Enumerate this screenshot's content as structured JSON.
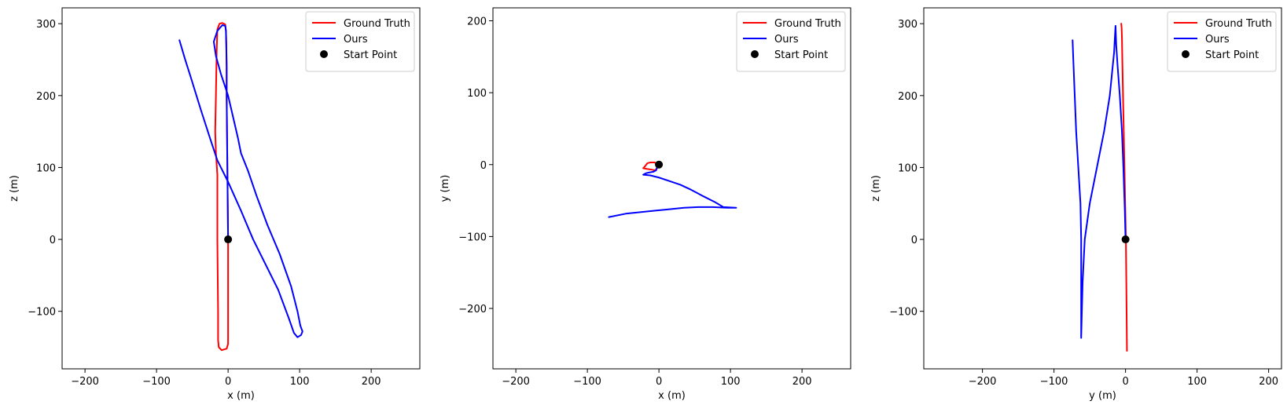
{
  "chart_data": [
    {
      "type": "line",
      "xlabel": "x (m)",
      "ylabel": "z (m)",
      "xlim": [
        -232,
        268
      ],
      "ylim": [
        -180,
        322
      ],
      "xticks": [
        -200,
        -100,
        0,
        100,
        200
      ],
      "yticks": [
        -100,
        0,
        100,
        200,
        300
      ],
      "xtick_labels": [
        "−200",
        "−100",
        "0",
        "100",
        "200"
      ],
      "ytick_labels": [
        "−100",
        "0",
        "100",
        "200",
        "300"
      ],
      "grid": false,
      "legend_position": "top-right",
      "series": [
        {
          "name": "Ground Truth",
          "color": "#ff0000",
          "points": [
            [
              0,
              0
            ],
            [
              -0.5,
              50
            ],
            [
              -1,
              100
            ],
            [
              -1.5,
              150
            ],
            [
              -2,
              200
            ],
            [
              -2,
              240
            ],
            [
              -2.5,
              270
            ],
            [
              -3,
              290
            ],
            [
              -4,
              299
            ],
            [
              -8,
              301
            ],
            [
              -12,
              300
            ],
            [
              -15,
              292
            ],
            [
              -16,
              260
            ],
            [
              -17,
              200
            ],
            [
              -18,
              150
            ],
            [
              -17,
              120
            ],
            [
              -15,
              90
            ],
            [
              -15,
              50
            ],
            [
              -15,
              0
            ],
            [
              -14.5,
              -50
            ],
            [
              -14,
              -100
            ],
            [
              -14,
              -140
            ],
            [
              -13,
              -150
            ],
            [
              -9,
              -154
            ],
            [
              -2,
              -152
            ],
            [
              0,
              -145
            ],
            [
              0,
              -100
            ],
            [
              0,
              -50
            ],
            [
              0,
              0
            ]
          ]
        },
        {
          "name": "Ours",
          "color": "#0000ff",
          "points": [
            [
              0,
              0
            ],
            [
              -0.5,
              50
            ],
            [
              -1,
              100
            ],
            [
              -1.5,
              150
            ],
            [
              -2,
              200
            ],
            [
              -2,
              240
            ],
            [
              -2.5,
              270
            ],
            [
              -3,
              290
            ],
            [
              -4,
              297
            ],
            [
              -8,
              298
            ],
            [
              -15,
              290
            ],
            [
              -20,
              275
            ],
            [
              -17,
              255
            ],
            [
              -10,
              230
            ],
            [
              0,
              200
            ],
            [
              7,
              170
            ],
            [
              14,
              140
            ],
            [
              18,
              120
            ],
            [
              28,
              95
            ],
            [
              40,
              60
            ],
            [
              55,
              20
            ],
            [
              72,
              -20
            ],
            [
              88,
              -65
            ],
            [
              97,
              -100
            ],
            [
              101,
              -120
            ],
            [
              104,
              -128
            ],
            [
              102,
              -133
            ],
            [
              97,
              -136
            ],
            [
              92,
              -130
            ],
            [
              85,
              -110
            ],
            [
              70,
              -70
            ],
            [
              55,
              -40
            ],
            [
              35,
              0
            ],
            [
              18,
              40
            ],
            [
              0,
              80
            ],
            [
              -15,
              110
            ],
            [
              -25,
              140
            ],
            [
              -38,
              180
            ],
            [
              -52,
              225
            ],
            [
              -60,
              250
            ],
            [
              -68,
              277
            ]
          ]
        },
        {
          "name": "Start Point",
          "color": "#000000",
          "marker": "circle",
          "points": [
            [
              0,
              0
            ]
          ]
        }
      ]
    },
    {
      "type": "line",
      "xlabel": "x (m)",
      "ylabel": "y (m)",
      "xlim": [
        -232,
        268
      ],
      "ylim": [
        -284,
        218
      ],
      "xticks": [
        -200,
        -100,
        0,
        100,
        200
      ],
      "yticks": [
        -200,
        -100,
        0,
        100,
        200
      ],
      "xtick_labels": [
        "−200",
        "−100",
        "0",
        "100",
        "200"
      ],
      "ytick_labels": [
        "−200",
        "−100",
        "0",
        "100",
        "200"
      ],
      "grid": false,
      "legend_position": "top-right",
      "series": [
        {
          "name": "Ground Truth",
          "color": "#ff0000",
          "points": [
            [
              0,
              0
            ],
            [
              -3,
              1
            ],
            [
              -6,
              3
            ],
            [
              -12,
              3
            ],
            [
              -16,
              2
            ],
            [
              -20,
              -3
            ],
            [
              -22,
              -5
            ],
            [
              -17,
              -6
            ],
            [
              -10,
              -7
            ],
            [
              -5,
              -8
            ],
            [
              -3,
              -5
            ],
            [
              -2,
              -2
            ],
            [
              -1,
              0
            ]
          ]
        },
        {
          "name": "Ours",
          "color": "#0000ff",
          "points": [
            [
              0,
              0
            ],
            [
              -2,
              -3
            ],
            [
              -4,
              -8
            ],
            [
              -8,
              -10
            ],
            [
              -14,
              -11
            ],
            [
              -18,
              -12
            ],
            [
              -22,
              -14
            ],
            [
              -12,
              -15
            ],
            [
              0,
              -18
            ],
            [
              15,
              -23
            ],
            [
              30,
              -28
            ],
            [
              45,
              -35
            ],
            [
              62,
              -44
            ],
            [
              78,
              -52
            ],
            [
              90,
              -59
            ],
            [
              108,
              -60
            ],
            [
              95,
              -60
            ],
            [
              75,
              -59
            ],
            [
              55,
              -59
            ],
            [
              35,
              -60
            ],
            [
              15,
              -62
            ],
            [
              -5,
              -64
            ],
            [
              -25,
              -66
            ],
            [
              -45,
              -68
            ],
            [
              -70,
              -73
            ]
          ]
        },
        {
          "name": "Start Point",
          "color": "#000000",
          "marker": "circle",
          "points": [
            [
              0,
              0
            ]
          ]
        }
      ]
    },
    {
      "type": "line",
      "xlabel": "y (m)",
      "ylabel": "z (m)",
      "xlim": [
        -282,
        218
      ],
      "ylim": [
        -180,
        322
      ],
      "xticks": [
        -200,
        -100,
        0,
        100,
        200
      ],
      "yticks": [
        -100,
        0,
        100,
        200,
        300
      ],
      "xtick_labels": [
        "−200",
        "−100",
        "0",
        "100",
        "200"
      ],
      "ytick_labels": [
        "−100",
        "0",
        "100",
        "200",
        "300"
      ],
      "grid": false,
      "legend_position": "top-right",
      "series": [
        {
          "name": "Ground Truth",
          "color": "#ff0000",
          "points": [
            [
              2,
              -155
            ],
            [
              1.5,
              -100
            ],
            [
              1,
              -50
            ],
            [
              0.5,
              0
            ],
            [
              -0.5,
              50
            ],
            [
              -1.5,
              100
            ],
            [
              -2.5,
              150
            ],
            [
              -3.5,
              200
            ],
            [
              -4.5,
              250
            ],
            [
              -5,
              280
            ],
            [
              -5.5,
              295
            ],
            [
              -6,
              300
            ]
          ]
        },
        {
          "name": "Ours",
          "color": "#0000ff",
          "points": [
            [
              0,
              0
            ],
            [
              -1,
              40
            ],
            [
              -3,
              100
            ],
            [
              -5,
              150
            ],
            [
              -8,
              200
            ],
            [
              -11,
              240
            ],
            [
              -13,
              270
            ],
            [
              -14,
              297
            ],
            [
              -16,
              260
            ],
            [
              -22,
              200
            ],
            [
              -30,
              150
            ],
            [
              -40,
              100
            ],
            [
              -50,
              50
            ],
            [
              -57,
              0
            ],
            [
              -60,
              -60
            ],
            [
              -62,
              -137
            ],
            [
              -62,
              -100
            ],
            [
              -62,
              -60
            ],
            [
              -62,
              0
            ],
            [
              -63,
              50
            ],
            [
              -66,
              100
            ],
            [
              -69,
              150
            ],
            [
              -71,
              200
            ],
            [
              -73,
              250
            ],
            [
              -74,
              277
            ]
          ]
        },
        {
          "name": "Start Point",
          "color": "#000000",
          "marker": "circle",
          "points": [
            [
              0,
              0
            ]
          ]
        }
      ]
    }
  ]
}
